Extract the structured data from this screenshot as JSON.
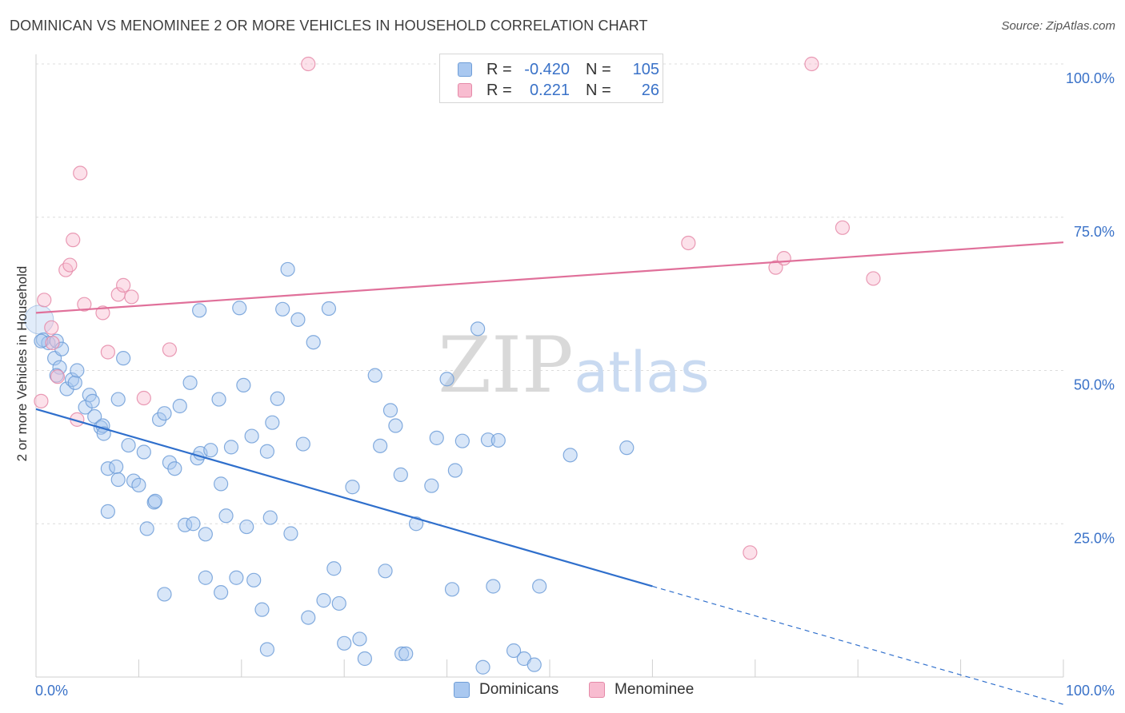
{
  "title": "DOMINICAN VS MENOMINEE 2 OR MORE VEHICLES IN HOUSEHOLD CORRELATION CHART",
  "source": "Source: ZipAtlas.com",
  "watermark": {
    "zip": "ZIP",
    "atlas": "atlas"
  },
  "legend": {
    "rows": [
      {
        "r_label": "R =",
        "r_value": "-0.420",
        "n_label": "N =",
        "n_value": "105",
        "color": "#a9c8f0",
        "border": "#6f9ed8"
      },
      {
        "r_label": "R =",
        "r_value": "0.221",
        "n_label": "N =",
        "n_value": "26",
        "color": "#f8bcd0",
        "border": "#e58aa8"
      }
    ]
  },
  "bottom_legend": [
    {
      "label": "Dominicans",
      "color": "#a9c8f0",
      "border": "#6f9ed8"
    },
    {
      "label": "Menominee",
      "color": "#f8bcd0",
      "border": "#e58aa8"
    }
  ],
  "chart_data": {
    "type": "scatter",
    "ylabel": "2 or more Vehicles in Household",
    "xlim": [
      0,
      100
    ],
    "ylim": [
      0,
      100
    ],
    "x_tick_labels": [
      "0.0%",
      "100.0%"
    ],
    "y_ticks": [
      {
        "value": 100,
        "label": "100.0%"
      },
      {
        "value": 75,
        "label": "75.0%"
      },
      {
        "value": 50,
        "label": "50.0%"
      },
      {
        "value": 25,
        "label": "25.0%"
      }
    ],
    "grid": true,
    "series": [
      {
        "name": "Dominicans",
        "color": "#a9c8f0",
        "stroke": "#6f9ed8",
        "line_color": "#2f6fcc",
        "trend": {
          "x0": 0,
          "y0": 43.7,
          "x1": 60,
          "y1": 14.8,
          "dash_to_x": 100
        },
        "points": [
          [
            0.7,
            55.0
          ],
          [
            1.2,
            54.5
          ],
          [
            2.0,
            54.8
          ],
          [
            1.8,
            52.0
          ],
          [
            2.3,
            50.5
          ],
          [
            2.5,
            53.5
          ],
          [
            3.0,
            47.0
          ],
          [
            3.5,
            48.5
          ],
          [
            3.8,
            48.0
          ],
          [
            4.0,
            50.0
          ],
          [
            4.8,
            44.0
          ],
          [
            5.2,
            46.0
          ],
          [
            5.5,
            45.0
          ],
          [
            5.7,
            42.5
          ],
          [
            6.3,
            40.7
          ],
          [
            6.5,
            41.0
          ],
          [
            6.6,
            39.7
          ],
          [
            8.0,
            45.3
          ],
          [
            8.5,
            52.0
          ],
          [
            7.0,
            27.0
          ],
          [
            7.0,
            34.0
          ],
          [
            7.8,
            34.3
          ],
          [
            8.0,
            32.2
          ],
          [
            9.0,
            37.8
          ],
          [
            9.5,
            32.0
          ],
          [
            10.0,
            31.3
          ],
          [
            10.5,
            36.7
          ],
          [
            10.8,
            24.2
          ],
          [
            11.5,
            28.5
          ],
          [
            11.6,
            28.7
          ],
          [
            12.0,
            42.0
          ],
          [
            12.5,
            43.0
          ],
          [
            13.0,
            35.0
          ],
          [
            13.5,
            34.0
          ],
          [
            14.0,
            44.2
          ],
          [
            14.5,
            24.8
          ],
          [
            15.0,
            48.0
          ],
          [
            15.3,
            25.0
          ],
          [
            15.7,
            35.7
          ],
          [
            16.0,
            36.5
          ],
          [
            16.5,
            23.3
          ],
          [
            17.0,
            37.0
          ],
          [
            16.5,
            16.2
          ],
          [
            12.5,
            13.5
          ],
          [
            15.9,
            59.8
          ],
          [
            17.8,
            45.3
          ],
          [
            18.0,
            31.5
          ],
          [
            18.5,
            26.3
          ],
          [
            19.0,
            37.5
          ],
          [
            19.5,
            16.2
          ],
          [
            18.0,
            13.8
          ],
          [
            19.8,
            60.2
          ],
          [
            20.2,
            47.6
          ],
          [
            20.5,
            24.5
          ],
          [
            21.0,
            39.3
          ],
          [
            21.2,
            15.8
          ],
          [
            22.0,
            11.0
          ],
          [
            22.5,
            36.8
          ],
          [
            22.8,
            26.0
          ],
          [
            23.0,
            41.5
          ],
          [
            23.5,
            45.4
          ],
          [
            24.0,
            60.0
          ],
          [
            24.5,
            66.5
          ],
          [
            24.8,
            23.4
          ],
          [
            25.5,
            58.3
          ],
          [
            26.0,
            38.0
          ],
          [
            26.5,
            9.7
          ],
          [
            27.0,
            54.6
          ],
          [
            28.0,
            12.5
          ],
          [
            28.5,
            60.1
          ],
          [
            29.0,
            17.7
          ],
          [
            29.5,
            12.0
          ],
          [
            30.0,
            5.5
          ],
          [
            30.8,
            31.0
          ],
          [
            31.5,
            6.2
          ],
          [
            32.0,
            3.0
          ],
          [
            33.0,
            49.2
          ],
          [
            33.5,
            37.7
          ],
          [
            34.0,
            17.3
          ],
          [
            34.5,
            43.5
          ],
          [
            35.0,
            41.0
          ],
          [
            35.5,
            33.0
          ],
          [
            35.6,
            3.8
          ],
          [
            36.0,
            3.8
          ],
          [
            37.0,
            25.0
          ],
          [
            38.5,
            31.2
          ],
          [
            39.0,
            39.0
          ],
          [
            40.0,
            48.6
          ],
          [
            40.5,
            14.3
          ],
          [
            40.8,
            33.7
          ],
          [
            41.5,
            38.5
          ],
          [
            43.0,
            56.8
          ],
          [
            43.5,
            1.6
          ],
          [
            44.0,
            38.7
          ],
          [
            44.5,
            14.8
          ],
          [
            45.0,
            38.6
          ],
          [
            46.5,
            4.3
          ],
          [
            47.5,
            3.0
          ],
          [
            48.5,
            2.0
          ],
          [
            49.0,
            14.8
          ],
          [
            52.0,
            36.2
          ],
          [
            57.5,
            37.4
          ],
          [
            22.5,
            4.5
          ],
          [
            0.5,
            54.8
          ],
          [
            2.0,
            49.2
          ]
        ]
      },
      {
        "name": "Menominee",
        "color": "#f8bcd0",
        "stroke": "#e58aa8",
        "line_color": "#e0709a",
        "trend": {
          "x0": 0,
          "y0": 59.4,
          "x1": 100,
          "y1": 70.9
        },
        "points": [
          [
            0.5,
            45.0
          ],
          [
            0.8,
            61.5
          ],
          [
            1.5,
            57.0
          ],
          [
            1.6,
            54.5
          ],
          [
            2.1,
            49.0
          ],
          [
            2.9,
            66.4
          ],
          [
            3.3,
            67.2
          ],
          [
            3.6,
            71.3
          ],
          [
            4.0,
            42.0
          ],
          [
            4.3,
            82.2
          ],
          [
            4.7,
            60.8
          ],
          [
            6.5,
            59.4
          ],
          [
            7.0,
            53.0
          ],
          [
            8.0,
            62.4
          ],
          [
            8.5,
            63.9
          ],
          [
            9.3,
            62.0
          ],
          [
            10.5,
            45.5
          ],
          [
            13.0,
            53.4
          ],
          [
            26.5,
            100.0
          ],
          [
            63.5,
            70.8
          ],
          [
            72.0,
            66.8
          ],
          [
            72.8,
            68.3
          ],
          [
            75.5,
            100.0
          ],
          [
            78.5,
            73.3
          ],
          [
            81.5,
            65.0
          ],
          [
            69.5,
            20.3
          ]
        ]
      }
    ]
  }
}
